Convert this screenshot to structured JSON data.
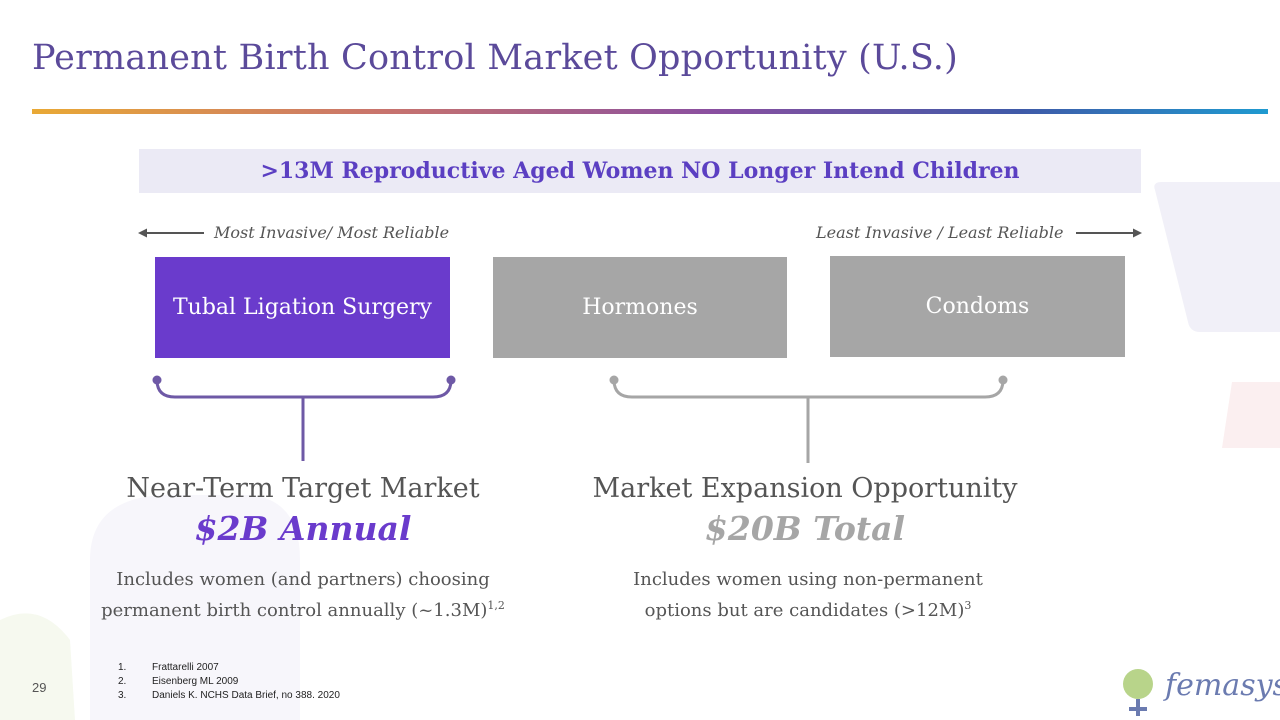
{
  "slide": {
    "title": "Permanent Birth Control Market Opportunity (U.S.)",
    "banner": ">13M Reproductive Aged Women NO Longer Intend Children",
    "left_caption": "Most Invasive/ Most Reliable",
    "right_caption": "Least Invasive / Least Reliable",
    "boxes": [
      {
        "label": "Tubal Ligation Surgery"
      },
      {
        "label": "Hormones"
      },
      {
        "label": "Condoms"
      }
    ],
    "near_term": {
      "heading": "Near-Term Target Market",
      "value": "$2B Annual",
      "desc_line1": "Includes women (and partners) choosing",
      "desc_line2": "permanent birth control annually (~1.3M)",
      "desc_sup": "1,2"
    },
    "expansion": {
      "heading": "Market Expansion Opportunity",
      "value": "$20B Total",
      "desc_line1": "Includes women using non-permanent",
      "desc_line2": "options but are candidates (>12M)",
      "desc_sup": "3"
    },
    "references": [
      {
        "num": "1.",
        "text": "Frattarelli 2007"
      },
      {
        "num": "2.",
        "text": "Eisenberg ML 2009"
      },
      {
        "num": "3.",
        "text": "Daniels K. NCHS Data Brief, no 388. 2020"
      }
    ],
    "page_number": "29",
    "logo_text": "femasys",
    "logo_mark": "®"
  },
  "colors": {
    "title": "#5b4a9a",
    "purple": "#6a3bcc",
    "gray": "#a6a6a6",
    "banner_bg": "#ebeaf5"
  }
}
